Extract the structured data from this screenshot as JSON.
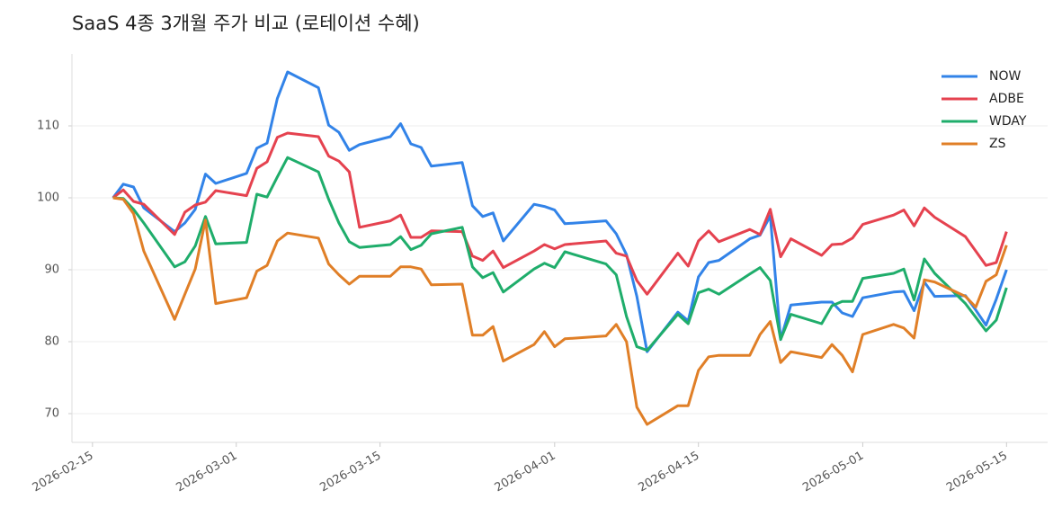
{
  "chart_data": {
    "type": "line",
    "title": "SaaS 4종 3개월 주가 비교 (로테이션 수혜)",
    "x": [
      "2026-02-17",
      "2026-02-18",
      "2026-02-19",
      "2026-02-20",
      "2026-02-23",
      "2026-02-24",
      "2026-02-25",
      "2026-02-26",
      "2026-02-27",
      "2026-03-02",
      "2026-03-03",
      "2026-03-04",
      "2026-03-05",
      "2026-03-06",
      "2026-03-09",
      "2026-03-10",
      "2026-03-11",
      "2026-03-12",
      "2026-03-13",
      "2026-03-16",
      "2026-03-17",
      "2026-03-18",
      "2026-03-19",
      "2026-03-20",
      "2026-03-23",
      "2026-03-24",
      "2026-03-25",
      "2026-03-26",
      "2026-03-27",
      "2026-03-30",
      "2026-03-31",
      "2026-04-01",
      "2026-04-02",
      "2026-04-06",
      "2026-04-07",
      "2026-04-08",
      "2026-04-09",
      "2026-04-10",
      "2026-04-13",
      "2026-04-14",
      "2026-04-15",
      "2026-04-16",
      "2026-04-17",
      "2026-04-20",
      "2026-04-21",
      "2026-04-22",
      "2026-04-23",
      "2026-04-24",
      "2026-04-27",
      "2026-04-28",
      "2026-04-29",
      "2026-04-30",
      "2026-05-01",
      "2026-05-04",
      "2026-05-05",
      "2026-05-06",
      "2026-05-07",
      "2026-05-08",
      "2026-05-11",
      "2026-05-12",
      "2026-05-13",
      "2026-05-14",
      "2026-05-15"
    ],
    "series": [
      {
        "name": "NOW",
        "color": "#3283e8",
        "values": [
          100,
          101.9,
          101.5,
          98.6,
          95.3,
          96.5,
          98.4,
          103.3,
          102,
          103.4,
          106.9,
          107.6,
          113.8,
          117.5,
          115.3,
          110.1,
          109.1,
          106.6,
          107.4,
          108.5,
          110.3,
          107.5,
          107,
          104.4,
          104.9,
          98.9,
          97.4,
          97.9,
          94,
          99.1,
          98.8,
          98.3,
          96.4,
          96.8,
          95,
          92.1,
          86.3,
          78.6,
          84.1,
          82.9,
          89,
          91,
          91.3,
          94.3,
          94.8,
          97.5,
          80.3,
          85.1,
          85.5,
          85.5,
          84,
          83.5,
          86.1,
          86.9,
          87,
          84.3,
          88.3,
          86.3,
          86.4,
          84.4,
          82.3,
          85.9,
          90
        ]
      },
      {
        "name": "ADBE",
        "color": "#e5424f",
        "values": [
          100,
          101.1,
          99.5,
          99.1,
          94.9,
          98,
          99,
          99.4,
          101,
          100.3,
          104.1,
          105,
          108.4,
          109,
          108.5,
          105.8,
          105.1,
          103.6,
          95.9,
          96.8,
          97.6,
          94.5,
          94.5,
          95.4,
          95.3,
          91.9,
          91.3,
          92.6,
          90.3,
          92.6,
          93.5,
          92.9,
          93.5,
          94,
          92.3,
          91.9,
          88.5,
          86.6,
          92.3,
          90.5,
          94,
          95.4,
          93.9,
          95.6,
          94.9,
          98.4,
          91.8,
          94.3,
          92,
          93.5,
          93.6,
          94.4,
          96.3,
          97.6,
          98.3,
          96.1,
          98.6,
          97.3,
          94.6,
          92.6,
          90.6,
          91,
          95.3
        ]
      },
      {
        "name": "WDAY",
        "color": "#1fad6b",
        "values": [
          100,
          99.9,
          98.4,
          96.5,
          90.4,
          91.1,
          93.3,
          97.4,
          93.6,
          93.8,
          100.5,
          100.1,
          102.9,
          105.6,
          103.6,
          99.8,
          96.5,
          93.9,
          93.1,
          93.5,
          94.6,
          92.8,
          93.4,
          95,
          95.9,
          90.4,
          88.9,
          89.6,
          86.9,
          90.1,
          90.9,
          90.3,
          92.5,
          90.8,
          89.3,
          83.5,
          79.3,
          78.8,
          83.8,
          82.5,
          86.8,
          87.3,
          86.6,
          89.4,
          90.3,
          88.5,
          80.3,
          83.8,
          82.5,
          85,
          85.6,
          85.6,
          88.8,
          89.5,
          90.1,
          85.8,
          91.5,
          89.5,
          85.3,
          83.4,
          81.5,
          83,
          87.5
        ]
      },
      {
        "name": "ZS",
        "color": "#e07f27",
        "values": [
          100,
          99.8,
          97.8,
          92.6,
          83.1,
          86.6,
          90.1,
          96.9,
          85.3,
          86.1,
          89.8,
          90.6,
          94,
          95.1,
          94.4,
          90.8,
          89.3,
          88,
          89.1,
          89.1,
          90.4,
          90.4,
          90.1,
          87.9,
          88,
          80.9,
          80.9,
          82.1,
          77.3,
          79.6,
          81.4,
          79.3,
          80.4,
          80.8,
          82.4,
          80,
          70.9,
          68.5,
          71.1,
          71.1,
          76,
          77.9,
          78.1,
          78.1,
          81,
          82.8,
          77.1,
          78.6,
          77.8,
          79.6,
          78.1,
          75.8,
          81,
          82.4,
          81.9,
          80.5,
          88.6,
          88.3,
          86.3,
          84.8,
          88.4,
          89.3,
          93.4
        ]
      }
    ],
    "xlim": [
      "2026-02-13",
      "2026-05-19"
    ],
    "xticks": [
      "2026-02-15",
      "2026-03-01",
      "2026-03-15",
      "2026-04-01",
      "2026-04-15",
      "2026-05-01",
      "2026-05-15"
    ],
    "ylim": [
      66,
      120
    ],
    "yticks": [
      70,
      80,
      90,
      100,
      110
    ],
    "grid": true,
    "legend": "upper right"
  }
}
